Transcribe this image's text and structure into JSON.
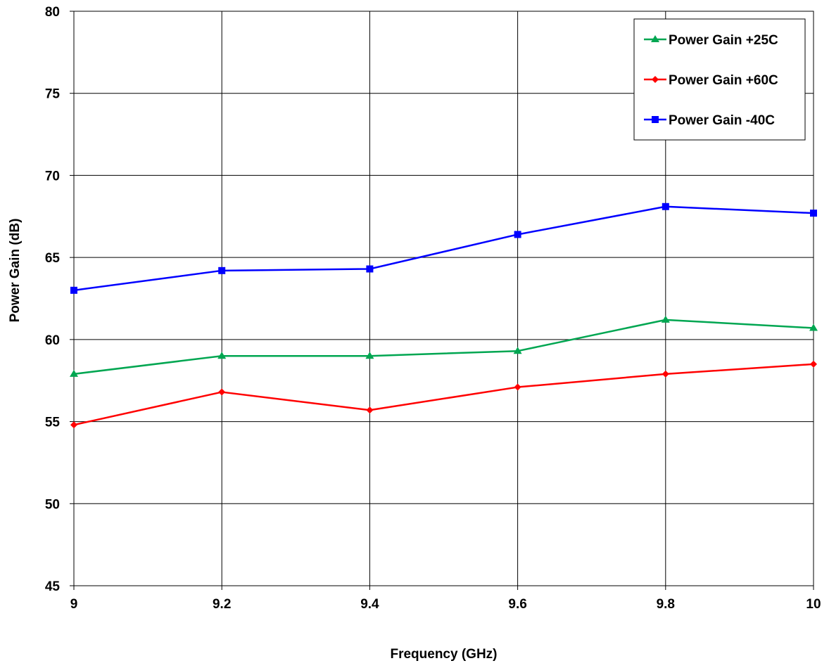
{
  "chart_data": {
    "type": "line",
    "title": "",
    "xlabel": "Frequency (GHz)",
    "ylabel": "Power Gain (dB)",
    "xlim": [
      9,
      10
    ],
    "ylim": [
      45,
      80
    ],
    "x": [
      9,
      9.2,
      9.4,
      9.6,
      9.8,
      10
    ],
    "x_ticks": [
      "9",
      "9.2",
      "9.4",
      "9.6",
      "9.8",
      "10"
    ],
    "y_ticks": [
      "45",
      "50",
      "55",
      "60",
      "65",
      "70",
      "75",
      "80"
    ],
    "grid": true,
    "legend_position": "top-right",
    "series": [
      {
        "name": "Power Gain +25C",
        "color": "#00a651",
        "marker": "triangle",
        "values": [
          57.9,
          59.0,
          59.0,
          59.3,
          61.2,
          60.7
        ]
      },
      {
        "name": "Power Gain +60C",
        "color": "#ff0000",
        "marker": "diamond",
        "values": [
          54.8,
          56.8,
          55.7,
          57.1,
          57.9,
          58.5
        ]
      },
      {
        "name": "Power Gain -40C",
        "color": "#0000ff",
        "marker": "square",
        "values": [
          63.0,
          64.2,
          64.3,
          66.4,
          68.1,
          67.7
        ]
      }
    ]
  }
}
